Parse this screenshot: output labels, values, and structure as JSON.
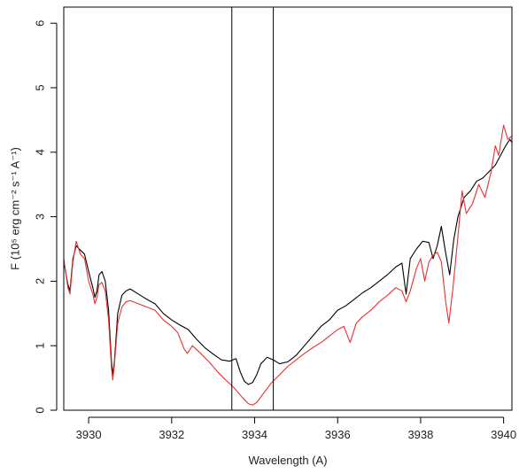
{
  "chart_data": {
    "type": "line",
    "title": "",
    "xlabel": "Wavelength (A)",
    "ylabel": "F (10⁵ erg cm⁻² s⁻¹ A⁻¹)",
    "xlim": [
      3929.4,
      3940.2
    ],
    "ylim": [
      0,
      6.25
    ],
    "x_ticks": [
      3930,
      3932,
      3934,
      3936,
      3938,
      3940
    ],
    "y_ticks": [
      0,
      1,
      2,
      3,
      4,
      5,
      6
    ],
    "x_tick_labels": [
      "3930",
      "3932",
      "3934",
      "3936",
      "3938",
      "3940"
    ],
    "y_tick_labels": [
      "0",
      "1",
      "2",
      "3",
      "4",
      "5",
      "6"
    ],
    "grid": false,
    "legend": "none",
    "vertical_lines": [
      3933.45,
      3934.45
    ],
    "series": [
      {
        "color": "#000000",
        "points": [
          [
            3929.4,
            2.3
          ],
          [
            3929.5,
            1.95
          ],
          [
            3929.55,
            1.85
          ],
          [
            3929.62,
            2.35
          ],
          [
            3929.7,
            2.55
          ],
          [
            3929.8,
            2.48
          ],
          [
            3929.9,
            2.42
          ],
          [
            3930.0,
            2.15
          ],
          [
            3930.1,
            1.9
          ],
          [
            3930.15,
            1.75
          ],
          [
            3930.2,
            1.85
          ],
          [
            3930.25,
            2.1
          ],
          [
            3930.32,
            2.15
          ],
          [
            3930.4,
            2.0
          ],
          [
            3930.48,
            1.55
          ],
          [
            3930.55,
            0.75
          ],
          [
            3930.58,
            0.55
          ],
          [
            3930.62,
            0.75
          ],
          [
            3930.7,
            1.5
          ],
          [
            3930.8,
            1.78
          ],
          [
            3930.9,
            1.85
          ],
          [
            3931.0,
            1.88
          ],
          [
            3931.2,
            1.8
          ],
          [
            3931.4,
            1.72
          ],
          [
            3931.6,
            1.65
          ],
          [
            3931.8,
            1.5
          ],
          [
            3932.0,
            1.4
          ],
          [
            3932.2,
            1.32
          ],
          [
            3932.4,
            1.25
          ],
          [
            3932.6,
            1.1
          ],
          [
            3932.8,
            0.97
          ],
          [
            3933.0,
            0.87
          ],
          [
            3933.2,
            0.78
          ],
          [
            3933.4,
            0.76
          ],
          [
            3933.55,
            0.8
          ],
          [
            3933.65,
            0.6
          ],
          [
            3933.75,
            0.45
          ],
          [
            3933.85,
            0.4
          ],
          [
            3933.95,
            0.43
          ],
          [
            3934.05,
            0.55
          ],
          [
            3934.15,
            0.72
          ],
          [
            3934.3,
            0.82
          ],
          [
            3934.45,
            0.78
          ],
          [
            3934.6,
            0.72
          ],
          [
            3934.8,
            0.75
          ],
          [
            3935.0,
            0.85
          ],
          [
            3935.2,
            1.0
          ],
          [
            3935.4,
            1.15
          ],
          [
            3935.6,
            1.3
          ],
          [
            3935.8,
            1.4
          ],
          [
            3936.0,
            1.55
          ],
          [
            3936.2,
            1.62
          ],
          [
            3936.4,
            1.72
          ],
          [
            3936.6,
            1.82
          ],
          [
            3936.8,
            1.9
          ],
          [
            3937.0,
            2.0
          ],
          [
            3937.2,
            2.1
          ],
          [
            3937.4,
            2.22
          ],
          [
            3937.55,
            2.28
          ],
          [
            3937.65,
            1.8
          ],
          [
            3937.75,
            2.35
          ],
          [
            3937.9,
            2.5
          ],
          [
            3938.05,
            2.62
          ],
          [
            3938.2,
            2.6
          ],
          [
            3938.3,
            2.35
          ],
          [
            3938.4,
            2.55
          ],
          [
            3938.5,
            2.85
          ],
          [
            3938.6,
            2.45
          ],
          [
            3938.7,
            2.1
          ],
          [
            3938.8,
            2.65
          ],
          [
            3938.9,
            3.0
          ],
          [
            3939.05,
            3.3
          ],
          [
            3939.2,
            3.4
          ],
          [
            3939.35,
            3.55
          ],
          [
            3939.5,
            3.6
          ],
          [
            3939.65,
            3.7
          ],
          [
            3939.8,
            3.8
          ],
          [
            3939.95,
            3.98
          ],
          [
            3940.05,
            4.1
          ],
          [
            3940.15,
            4.2
          ],
          [
            3940.2,
            4.15
          ]
        ]
      },
      {
        "color": "#e8312f",
        "points": [
          [
            3929.4,
            2.35
          ],
          [
            3929.5,
            1.9
          ],
          [
            3929.55,
            1.8
          ],
          [
            3929.62,
            2.3
          ],
          [
            3929.7,
            2.62
          ],
          [
            3929.8,
            2.42
          ],
          [
            3929.9,
            2.35
          ],
          [
            3930.0,
            2.0
          ],
          [
            3930.1,
            1.8
          ],
          [
            3930.15,
            1.65
          ],
          [
            3930.2,
            1.75
          ],
          [
            3930.25,
            1.95
          ],
          [
            3930.32,
            1.98
          ],
          [
            3930.4,
            1.85
          ],
          [
            3930.48,
            1.4
          ],
          [
            3930.55,
            0.65
          ],
          [
            3930.58,
            0.47
          ],
          [
            3930.62,
            0.7
          ],
          [
            3930.7,
            1.35
          ],
          [
            3930.8,
            1.6
          ],
          [
            3930.9,
            1.68
          ],
          [
            3931.0,
            1.7
          ],
          [
            3931.2,
            1.65
          ],
          [
            3931.4,
            1.6
          ],
          [
            3931.6,
            1.55
          ],
          [
            3931.8,
            1.4
          ],
          [
            3932.0,
            1.3
          ],
          [
            3932.15,
            1.2
          ],
          [
            3932.3,
            0.95
          ],
          [
            3932.38,
            0.88
          ],
          [
            3932.5,
            1.0
          ],
          [
            3932.7,
            0.88
          ],
          [
            3932.9,
            0.75
          ],
          [
            3933.1,
            0.6
          ],
          [
            3933.3,
            0.47
          ],
          [
            3933.5,
            0.35
          ],
          [
            3933.7,
            0.2
          ],
          [
            3933.85,
            0.1
          ],
          [
            3933.95,
            0.08
          ],
          [
            3934.05,
            0.12
          ],
          [
            3934.2,
            0.25
          ],
          [
            3934.4,
            0.42
          ],
          [
            3934.6,
            0.55
          ],
          [
            3934.8,
            0.68
          ],
          [
            3935.0,
            0.78
          ],
          [
            3935.2,
            0.88
          ],
          [
            3935.4,
            0.97
          ],
          [
            3935.6,
            1.05
          ],
          [
            3935.8,
            1.15
          ],
          [
            3936.0,
            1.25
          ],
          [
            3936.15,
            1.3
          ],
          [
            3936.3,
            1.05
          ],
          [
            3936.45,
            1.35
          ],
          [
            3936.6,
            1.45
          ],
          [
            3936.8,
            1.55
          ],
          [
            3937.0,
            1.68
          ],
          [
            3937.2,
            1.78
          ],
          [
            3937.4,
            1.9
          ],
          [
            3937.55,
            1.85
          ],
          [
            3937.65,
            1.68
          ],
          [
            3937.75,
            1.85
          ],
          [
            3937.9,
            2.2
          ],
          [
            3938.0,
            2.35
          ],
          [
            3938.1,
            2.0
          ],
          [
            3938.2,
            2.3
          ],
          [
            3938.3,
            2.4
          ],
          [
            3938.4,
            2.45
          ],
          [
            3938.5,
            2.3
          ],
          [
            3938.6,
            1.7
          ],
          [
            3938.68,
            1.35
          ],
          [
            3938.78,
            1.9
          ],
          [
            3938.9,
            2.7
          ],
          [
            3939.0,
            3.4
          ],
          [
            3939.1,
            3.05
          ],
          [
            3939.25,
            3.2
          ],
          [
            3939.4,
            3.5
          ],
          [
            3939.55,
            3.3
          ],
          [
            3939.7,
            3.7
          ],
          [
            3939.8,
            4.1
          ],
          [
            3939.88,
            3.95
          ],
          [
            3940.0,
            4.42
          ],
          [
            3940.1,
            4.2
          ],
          [
            3940.2,
            4.25
          ]
        ]
      }
    ]
  }
}
